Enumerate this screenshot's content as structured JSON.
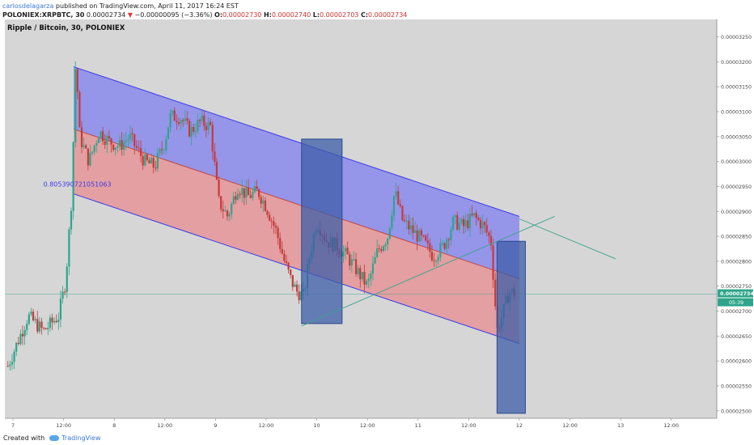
{
  "header": {
    "author": "carlosdelagarza",
    "published_text": "published on TradingView.com, April 11, 2017 16:24 EST",
    "symbol": "POLONIEX:XRPBTC, 30",
    "last_price": "0.00002734",
    "change": "−0.00000095 (−3.36%)",
    "o_label": "O:",
    "o_value": "0.00002730",
    "h_label": "H:",
    "h_value": "0.00002740",
    "l_label": "L:",
    "l_value": "0.00002703",
    "c_label": "C:",
    "c_value": "0.00002734"
  },
  "pair_title": "Ripple / Bitcoin, 30, POLONIEX",
  "footer": {
    "created_with": "Created with",
    "brand": "TradingView"
  },
  "colors": {
    "background": "#ffffff",
    "plot_bg": "#d6d6d6",
    "up_candle": "#2ea58a",
    "down_candle": "#c63a3a",
    "channel_upper": "#7f7ff0",
    "channel_lower": "#e8888a",
    "channel_line": "#3b3be8",
    "box_fill": "#3d5ea8",
    "trend_line": "#3aa38a",
    "price_tag": "#2ea58a"
  },
  "chart_data": {
    "type": "candlestick",
    "title": "Ripple / Bitcoin, 30, POLONIEX",
    "x_tick_labels": [
      "7",
      "12:00",
      "8",
      "12:00",
      "9",
      "12:00",
      "10",
      "12:00",
      "11",
      "12:00",
      "12",
      "12:00",
      "13",
      "12:00"
    ],
    "x_tick_positions": [
      0,
      0.5,
      1,
      1.5,
      2,
      2.5,
      3,
      3.5,
      4,
      4.5,
      5,
      5.5,
      6,
      6.5
    ],
    "xlim": [
      -0.08,
      6.95
    ],
    "y_tick_labels": [
      "0.00003250",
      "0.00003200",
      "0.00003150",
      "0.00003100",
      "0.00003050",
      "0.00003000",
      "0.00002950",
      "0.00002900",
      "0.00002850",
      "0.00002800",
      "0.00002750",
      "0.00002700",
      "0.00002650",
      "0.00002600",
      "0.00002550",
      "0.00002500"
    ],
    "y_tick_values": [
      3250,
      3200,
      3150,
      3100,
      3050,
      3000,
      2950,
      2900,
      2850,
      2800,
      2750,
      2700,
      2650,
      2600,
      2550,
      2500
    ],
    "y_unit_note": "values in 1e-8 BTC",
    "ylim": [
      2485,
      3285
    ],
    "grid": false,
    "current_price": "0.00002734",
    "countdown": "05:39",
    "fib_label": "0.805390721051063",
    "price_path": [
      [
        -0.05,
        2590
      ],
      [
        0.05,
        2640
      ],
      [
        0.15,
        2690
      ],
      [
        0.3,
        2660
      ],
      [
        0.45,
        2690
      ],
      [
        0.52,
        2760
      ],
      [
        0.58,
        2930
      ],
      [
        0.62,
        3210
      ],
      [
        0.66,
        3050
      ],
      [
        0.75,
        3000
      ],
      [
        0.85,
        3060
      ],
      [
        0.95,
        3040
      ],
      [
        1.05,
        3030
      ],
      [
        1.15,
        3050
      ],
      [
        1.3,
        3000
      ],
      [
        1.4,
        2990
      ],
      [
        1.5,
        3040
      ],
      [
        1.55,
        3090
      ],
      [
        1.65,
        3090
      ],
      [
        1.75,
        3060
      ],
      [
        1.85,
        3080
      ],
      [
        1.95,
        3070
      ],
      [
        2.03,
        2920
      ],
      [
        2.12,
        2890
      ],
      [
        2.22,
        2950
      ],
      [
        2.32,
        2930
      ],
      [
        2.42,
        2940
      ],
      [
        2.5,
        2910
      ],
      [
        2.6,
        2860
      ],
      [
        2.68,
        2800
      ],
      [
        2.75,
        2760
      ],
      [
        2.8,
        2740
      ],
      [
        2.87,
        2730
      ],
      [
        2.93,
        2810
      ],
      [
        3.0,
        2880
      ],
      [
        3.1,
        2840
      ],
      [
        3.2,
        2830
      ],
      [
        3.3,
        2810
      ],
      [
        3.4,
        2780
      ],
      [
        3.5,
        2750
      ],
      [
        3.6,
        2820
      ],
      [
        3.7,
        2850
      ],
      [
        3.77,
        2940
      ],
      [
        3.85,
        2880
      ],
      [
        3.95,
        2860
      ],
      [
        4.05,
        2840
      ],
      [
        4.15,
        2810
      ],
      [
        4.25,
        2830
      ],
      [
        4.35,
        2880
      ],
      [
        4.45,
        2870
      ],
      [
        4.55,
        2890
      ],
      [
        4.65,
        2870
      ],
      [
        4.72,
        2840
      ],
      [
        4.78,
        2660
      ],
      [
        4.83,
        2690
      ],
      [
        4.9,
        2740
      ],
      [
        4.97,
        2734
      ]
    ],
    "channel": {
      "upper_start": [
        0.6,
        3190
      ],
      "upper_end": [
        5.0,
        2890
      ],
      "mid_start": [
        0.6,
        3065
      ],
      "mid_end": [
        5.0,
        2765
      ],
      "lower_start": [
        0.6,
        2935
      ],
      "lower_end": [
        5.0,
        2635
      ]
    },
    "boxes": [
      {
        "x": [
          2.85,
          3.25
        ],
        "y": [
          2675,
          3045
        ]
      },
      {
        "x": [
          4.78,
          5.06
        ],
        "y": [
          2495,
          2840
        ]
      }
    ],
    "trend_line": {
      "start": [
        2.85,
        2670
      ],
      "end": [
        5.35,
        2890
      ]
    },
    "upper_extension": {
      "start": [
        5.0,
        2885
      ],
      "end": [
        5.95,
        2805
      ]
    },
    "horizontal_level": 2734
  }
}
